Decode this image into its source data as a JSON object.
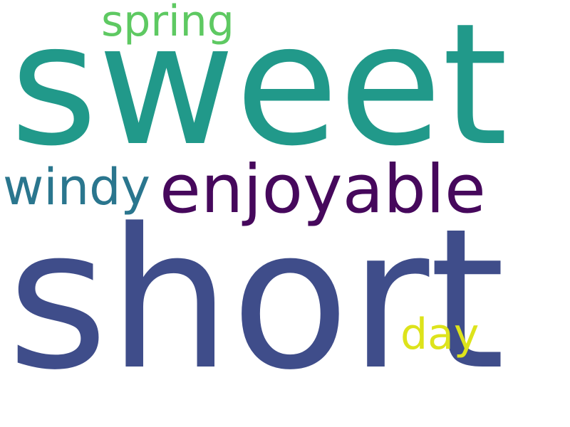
{
  "word_cloud": {
    "background": "#ffffff",
    "words": [
      {
        "id": "sweet",
        "text": "sweet",
        "color": "#21998a"
      },
      {
        "id": "short",
        "text": "short",
        "color": "#3f4d8a"
      },
      {
        "id": "enjoyable",
        "text": "enjoyable",
        "color": "#46085c"
      },
      {
        "id": "windy",
        "text": "windy",
        "color": "#2a768e"
      },
      {
        "id": "spring",
        "text": "spring",
        "color": "#5ec962"
      },
      {
        "id": "day",
        "text": "day",
        "color": "#dde31b"
      }
    ]
  }
}
